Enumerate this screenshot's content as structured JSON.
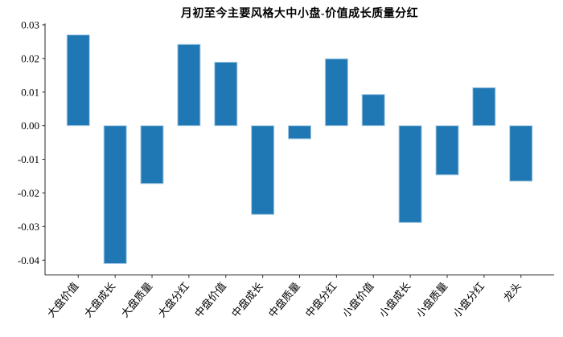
{
  "chart_data": {
    "type": "bar",
    "title": "月初至今主要风格大中小盘-价值成长质量分红",
    "categories": [
      "大盘价值",
      "大盘成长",
      "大盘质量",
      "大盘分红",
      "中盘价值",
      "中盘成长",
      "中盘质量",
      "中盘分红",
      "小盘价值",
      "小盘成长",
      "小盘质量",
      "小盘分红",
      "龙头"
    ],
    "values": [
      0.027,
      -0.041,
      -0.0172,
      0.0242,
      0.0189,
      -0.0264,
      -0.0039,
      0.0199,
      0.0093,
      -0.0288,
      -0.0146,
      0.0113,
      -0.0165
    ],
    "yticks": [
      0.03,
      0.02,
      0.01,
      0.0,
      -0.01,
      -0.02,
      -0.03,
      -0.04
    ],
    "ytick_labels": [
      "0.03",
      "0.02",
      "0.01",
      "0.00",
      "-0.01",
      "-0.02",
      "-0.03",
      "-0.04"
    ],
    "ylim": [
      -0.0444,
      0.0304
    ],
    "xlabel": "",
    "ylabel": "",
    "grid": false,
    "legend": null,
    "bar_color": "#1f77b4",
    "bar_edge_color": "#a9cce5",
    "axis_color": "#262626",
    "background_color": "#ffffff"
  }
}
